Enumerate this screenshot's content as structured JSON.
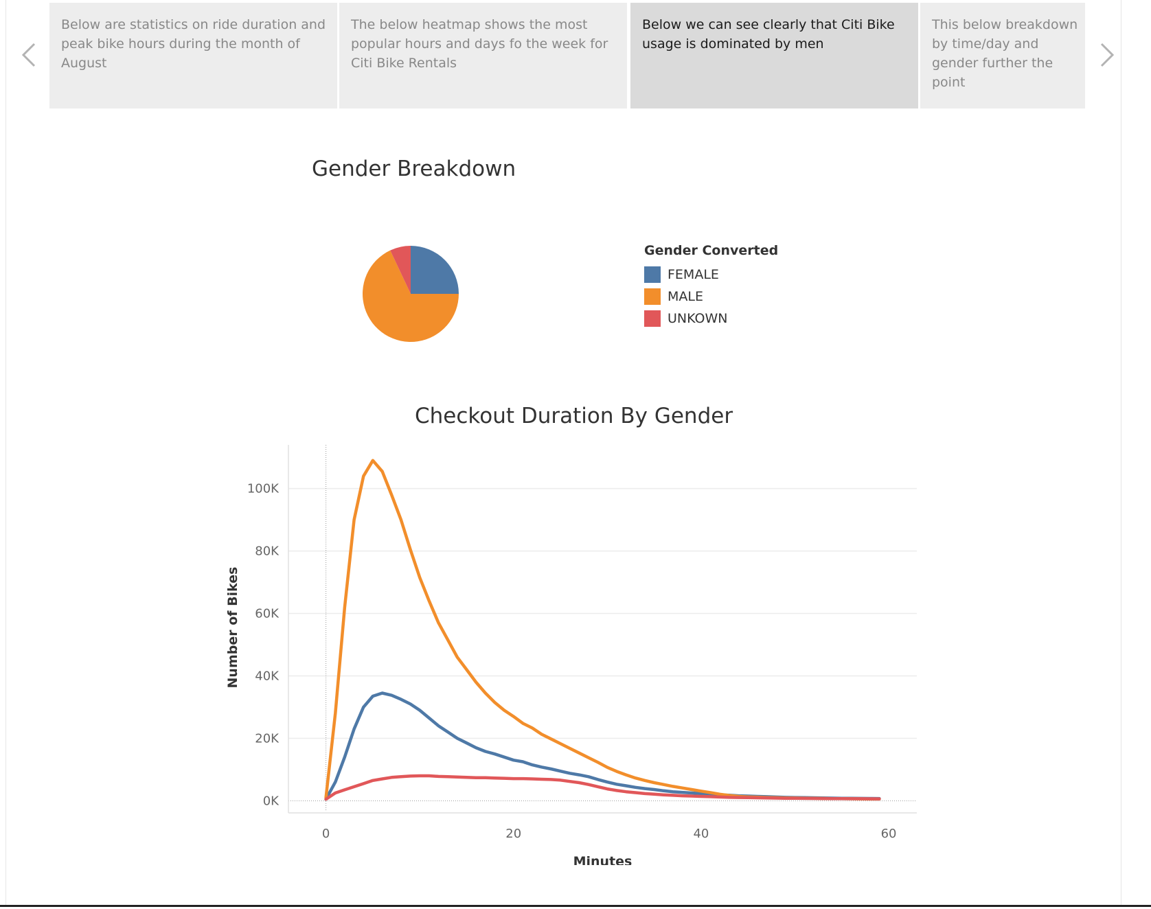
{
  "story": {
    "points": [
      "Below are statistics on ride duration and peak bike hours during the month of August",
      "The below heatmap shows the most popular hours and days fo the week for Citi Bike Rentals",
      "Below we can see clearly that Citi Bike usage is dominated by men",
      "This below breakdown by time/day and gender further the point"
    ],
    "active_index": 2
  },
  "icons": {
    "prev": "chevron-left-icon",
    "next": "chevron-right-icon"
  },
  "colors": {
    "female": "#4e79a7",
    "male": "#f28e2b",
    "unknown": "#e15759",
    "gridline": "#ececec"
  },
  "pie_title": "Gender Breakdown",
  "legend": {
    "title": "Gender Converted",
    "items": [
      {
        "label": "FEMALE",
        "color": "#4e79a7"
      },
      {
        "label": "MALE",
        "color": "#f28e2b"
      },
      {
        "label": "UNKOWN",
        "color": "#e15759"
      }
    ]
  },
  "line_title": "Checkout Duration By Gender",
  "chart_data": [
    {
      "type": "pie",
      "title": "Gender Breakdown",
      "categories": [
        "FEMALE",
        "MALE",
        "UNKOWN"
      ],
      "values": [
        25,
        68,
        7
      ],
      "colors": [
        "#4e79a7",
        "#f28e2b",
        "#e15759"
      ],
      "legend_title": "Gender Converted",
      "legend_position": "right"
    },
    {
      "type": "line",
      "title": "Checkout Duration By Gender",
      "xlabel": "Minutes",
      "ylabel": "Number of Bikes",
      "xlim": [
        -4,
        63
      ],
      "ylim": [
        -3000,
        114000
      ],
      "xticks": [
        "0",
        "20",
        "40",
        "60"
      ],
      "xtick_values": [
        0,
        20,
        40,
        60
      ],
      "yticks": [
        "0K",
        "20K",
        "40K",
        "60K",
        "80K",
        "100K"
      ],
      "ytick_values": [
        0,
        20000,
        40000,
        60000,
        80000,
        100000
      ],
      "grid": true,
      "x": [
        0,
        1,
        2,
        3,
        4,
        5,
        6,
        7,
        8,
        9,
        10,
        11,
        12,
        13,
        14,
        15,
        16,
        17,
        18,
        19,
        20,
        21,
        22,
        23,
        24,
        25,
        26,
        27,
        28,
        29,
        30,
        31,
        32,
        33,
        34,
        35,
        36,
        37,
        38,
        39,
        40,
        41,
        42,
        43,
        44,
        45,
        46,
        47,
        48,
        49,
        50,
        51,
        52,
        53,
        54,
        55,
        56,
        57,
        58,
        59
      ],
      "series": [
        {
          "name": "FEMALE",
          "color": "#4e79a7",
          "values": [
            500,
            6000,
            14000,
            23000,
            30000,
            33500,
            34500,
            33800,
            32500,
            31000,
            29000,
            26500,
            24000,
            22000,
            20000,
            18500,
            17000,
            15800,
            15000,
            14000,
            13000,
            12500,
            11500,
            10800,
            10200,
            9500,
            8800,
            8300,
            7700,
            6800,
            6000,
            5300,
            4800,
            4300,
            3900,
            3600,
            3200,
            2900,
            2700,
            2500,
            2300,
            2100,
            1900,
            1800,
            1600,
            1500,
            1400,
            1300,
            1200,
            1100,
            1050,
            1000,
            950,
            900,
            850,
            800,
            780,
            760,
            740,
            720
          ]
        },
        {
          "name": "MALE",
          "color": "#f28e2b",
          "values": [
            1000,
            28000,
            62000,
            90000,
            104000,
            109000,
            105500,
            98000,
            90000,
            80500,
            71500,
            64000,
            57000,
            51500,
            46000,
            42000,
            38000,
            34500,
            31500,
            29000,
            27000,
            24800,
            23300,
            21300,
            19800,
            18300,
            16800,
            15300,
            13800,
            12300,
            10700,
            9400,
            8300,
            7300,
            6500,
            5800,
            5200,
            4600,
            4100,
            3600,
            3100,
            2600,
            2100,
            1700,
            1400,
            1250,
            1150,
            1050,
            980,
            920,
            870,
            820,
            780,
            740,
            700,
            670,
            640,
            610,
            590,
            570
          ]
        },
        {
          "name": "UNKOWN",
          "color": "#e15759",
          "values": [
            500,
            2500,
            3500,
            4500,
            5500,
            6500,
            7000,
            7500,
            7700,
            7900,
            8000,
            8000,
            7800,
            7700,
            7600,
            7500,
            7400,
            7400,
            7300,
            7200,
            7100,
            7100,
            7000,
            6900,
            6800,
            6600,
            6200,
            5800,
            5200,
            4500,
            3800,
            3300,
            2900,
            2600,
            2300,
            2100,
            1900,
            1750,
            1600,
            1500,
            1400,
            1300,
            1200,
            1100,
            1050,
            1000,
            950,
            900,
            850,
            800,
            780,
            760,
            740,
            720,
            700,
            680,
            660,
            640,
            620,
            600
          ]
        }
      ]
    }
  ]
}
